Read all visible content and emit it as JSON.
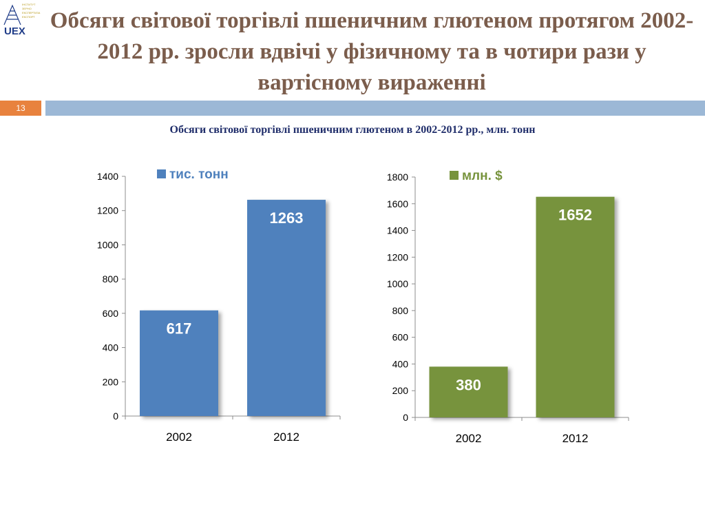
{
  "logo": {
    "text": "UEX",
    "small_lines": [
      "ІНСТИТУТ",
      "ЗЕРНО",
      "ЕКСПЕРТИЗА",
      "ЕКСПОРТ"
    ]
  },
  "title": "Обсяги світової торгівлі пшеничним глютеном протягом 2002-2012 рр. зросли вдвічі у фізичному та в чотири рази у вартісному вираженні",
  "slide_number": "13",
  "subtitle": "Обсяги світової торгівлі пшеничним глютеном в 2002-2012 рр., млн. тонн",
  "colors": {
    "title": "#7b5d4c",
    "band": "#9cb8d6",
    "slide_number_bg": "#e8823e",
    "subtitle": "#1f2d6a",
    "series_1": "#4f81bd",
    "series_2": "#77933c"
  },
  "chart_data": [
    {
      "type": "bar",
      "categories": [
        "2002",
        "2012"
      ],
      "series": [
        {
          "name": "тис. тонн",
          "values": [
            617,
            1263
          ]
        }
      ],
      "ylim": [
        0,
        1400
      ],
      "yticks": [
        0,
        200,
        400,
        600,
        800,
        1000,
        1200,
        1400
      ],
      "data_labels": [
        "617",
        "1263"
      ],
      "legend": "top-center",
      "color": "#4f81bd",
      "grid": false
    },
    {
      "type": "bar",
      "categories": [
        "2002",
        "2012"
      ],
      "series": [
        {
          "name": "млн. $",
          "values": [
            380,
            1652
          ]
        }
      ],
      "ylim": [
        0,
        1800
      ],
      "yticks": [
        0,
        200,
        400,
        600,
        800,
        1000,
        1200,
        1400,
        1600,
        1800
      ],
      "data_labels": [
        "380",
        "1652"
      ],
      "legend": "top-center",
      "color": "#77933c",
      "grid": false
    }
  ]
}
